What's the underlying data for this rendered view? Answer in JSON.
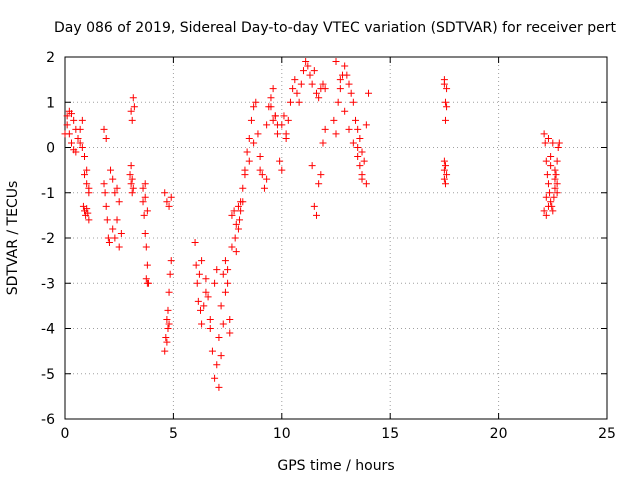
{
  "chart_data": {
    "type": "scatter",
    "title": "Day 086 of 2019, Sidereal Day-to-day VTEC variation (SDTVAR) for receiver pert",
    "xlabel": "GPS time / hours",
    "ylabel": "SDTVAR / TECUs",
    "xlim": [
      0,
      25
    ],
    "ylim": [
      -6,
      2
    ],
    "xticks": [
      0,
      5,
      10,
      15,
      20,
      25
    ],
    "yticks": [
      -6,
      -5,
      -4,
      -3,
      -2,
      -1,
      0,
      1,
      2
    ],
    "grid": true,
    "marker": "plus",
    "color": "#ff0000",
    "series": [
      {
        "name": "SDTVAR",
        "x": [
          0.0,
          0.1,
          0.2,
          0.3,
          0.4,
          0.5,
          0.6,
          0.7,
          0.8,
          0.9,
          1.0,
          1.1,
          0.1,
          0.2,
          0.3,
          0.4,
          0.5,
          0.6,
          0.7,
          0.8,
          0.85,
          0.9,
          0.95,
          1.0,
          1.05,
          1.1,
          0.9,
          1.0,
          1.1,
          1.8,
          1.85,
          1.9,
          1.95,
          2.0,
          2.05,
          1.8,
          1.9,
          2.2,
          2.3,
          2.4,
          2.5,
          2.1,
          2.2,
          2.3,
          2.4,
          2.5,
          2.6,
          3.0,
          3.05,
          3.1,
          3.15,
          3.05,
          3.1,
          3.15,
          3.2,
          3.05,
          3.1,
          3.6,
          3.65,
          3.7,
          3.75,
          3.8,
          3.85,
          3.6,
          3.7,
          3.8,
          3.7,
          3.75,
          3.8,
          4.6,
          4.65,
          4.7,
          4.75,
          4.8,
          4.85,
          4.9,
          4.7,
          4.75,
          4.8,
          4.6,
          4.7,
          4.8,
          4.9,
          6.0,
          6.05,
          6.1,
          6.15,
          6.2,
          6.25,
          6.3,
          6.4,
          6.5,
          6.6,
          6.7,
          6.8,
          6.9,
          7.0,
          7.1,
          7.2,
          7.3,
          7.4,
          7.5,
          7.6,
          7.7,
          6.3,
          6.5,
          6.7,
          6.9,
          7.0,
          7.1,
          7.2,
          7.3,
          7.4,
          7.5,
          7.6,
          7.7,
          7.8,
          7.85,
          7.9,
          8.0,
          8.05,
          8.1,
          8.2,
          8.3,
          7.9,
          8.0,
          8.1,
          8.2,
          8.3,
          8.4,
          8.5,
          8.6,
          8.7,
          8.8,
          8.9,
          9.0,
          9.1,
          9.2,
          9.3,
          9.4,
          9.5,
          9.6,
          9.7,
          9.8,
          9.9,
          10.0,
          8.5,
          8.7,
          9.0,
          9.3,
          9.5,
          9.6,
          9.7,
          9.8,
          10.0,
          10.1,
          10.2,
          10.2,
          10.3,
          10.4,
          10.5,
          10.6,
          10.7,
          10.8,
          10.9,
          11.0,
          11.1,
          11.2,
          11.3,
          11.4,
          11.5,
          11.6,
          11.7,
          11.8,
          11.9,
          12.0,
          11.4,
          11.5,
          11.6,
          11.7,
          11.8,
          11.9,
          12.0,
          12.4,
          12.5,
          12.6,
          12.7,
          12.8,
          12.9,
          13.0,
          13.1,
          13.2,
          13.3,
          13.4,
          13.5,
          13.6,
          13.7,
          13.8,
          13.9,
          14.0,
          12.5,
          12.7,
          12.9,
          13.1,
          13.3,
          13.5,
          13.7,
          13.9,
          13.5,
          13.6,
          13.7,
          17.5,
          17.5,
          17.55,
          17.6,
          17.55,
          17.5,
          17.55,
          17.6,
          17.5,
          17.55,
          17.6,
          17.5,
          22.1,
          22.15,
          22.2,
          22.25,
          22.3,
          22.35,
          22.4,
          22.45,
          22.5,
          22.55,
          22.6,
          22.65,
          22.7,
          22.75,
          22.8,
          22.2,
          22.3,
          22.4,
          22.5,
          22.6,
          22.7,
          22.1,
          22.2,
          22.3,
          22.4,
          22.6,
          22.7
        ],
        "y": [
          0.3,
          0.7,
          0.8,
          0.75,
          0.6,
          0.4,
          0.2,
          0.1,
          0.0,
          -0.2,
          -0.5,
          -0.9,
          0.5,
          0.3,
          0.1,
          -0.05,
          -0.1,
          0.2,
          0.4,
          0.6,
          -1.3,
          -1.4,
          -1.5,
          -1.35,
          -1.45,
          -1.6,
          -0.6,
          -0.8,
          -1.0,
          -0.8,
          -1.0,
          -1.3,
          -1.6,
          -2.0,
          -2.1,
          0.4,
          0.2,
          -1.8,
          -2.0,
          -1.6,
          -1.2,
          -0.5,
          -0.7,
          -1.0,
          -0.9,
          -2.2,
          -1.9,
          -0.6,
          -0.8,
          -1.0,
          -0.9,
          0.8,
          0.6,
          1.1,
          0.9,
          -0.4,
          -0.7,
          -1.2,
          -1.5,
          -1.9,
          -2.2,
          -2.6,
          -3.0,
          -0.9,
          -1.1,
          -1.4,
          -0.8,
          -2.9,
          -3.0,
          -4.5,
          -4.2,
          -3.8,
          -3.6,
          -3.2,
          -2.8,
          -2.5,
          -4.3,
          -4.0,
          -3.9,
          -1.0,
          -1.2,
          -1.3,
          -1.1,
          -2.1,
          -2.6,
          -3.0,
          -3.4,
          -2.8,
          -3.6,
          -3.9,
          -3.5,
          -2.9,
          -3.3,
          -4.0,
          -4.5,
          -5.1,
          -4.8,
          -4.2,
          -3.5,
          -2.8,
          -2.5,
          -3.0,
          -3.8,
          -2.2,
          -2.5,
          -3.2,
          -3.8,
          -3.0,
          -2.7,
          -5.3,
          -4.6,
          -3.9,
          -3.2,
          -2.7,
          -4.1,
          -1.5,
          -1.4,
          -2.0,
          -1.7,
          -1.3,
          -1.6,
          -1.4,
          -0.9,
          -0.5,
          -2.3,
          -1.8,
          -1.2,
          -1.2,
          -0.6,
          -0.1,
          0.2,
          0.6,
          0.9,
          1.0,
          0.3,
          -0.2,
          -0.6,
          -0.9,
          0.5,
          0.9,
          1.1,
          1.3,
          0.7,
          0.3,
          -0.3,
          -0.5,
          -0.3,
          0.1,
          -0.5,
          -0.7,
          0.9,
          0.6,
          0.7,
          0.5,
          0.5,
          0.7,
          0.3,
          0.2,
          0.6,
          1.0,
          1.3,
          1.5,
          1.2,
          1.0,
          1.4,
          1.7,
          1.9,
          1.8,
          1.6,
          1.4,
          1.7,
          1.2,
          1.1,
          1.3,
          1.4,
          1.3,
          -0.4,
          -1.3,
          -1.5,
          -0.8,
          -0.6,
          0.1,
          0.4,
          0.6,
          0.3,
          1.0,
          1.3,
          1.6,
          1.8,
          1.6,
          1.4,
          1.2,
          1.0,
          0.6,
          0.4,
          0.2,
          -0.1,
          -0.3,
          0.5,
          1.2,
          1.9,
          1.5,
          0.8,
          0.4,
          0.1,
          0.0,
          -0.6,
          -0.8,
          -0.2,
          -0.4,
          -0.7,
          1.5,
          1.4,
          1.0,
          0.9,
          0.6,
          -0.3,
          -0.4,
          -0.6,
          -0.7,
          -0.8,
          1.3,
          -0.5,
          0.3,
          0.1,
          -0.3,
          -0.6,
          -0.8,
          -1.0,
          -1.2,
          -1.3,
          -1.4,
          -1.1,
          -0.9,
          -0.6,
          -0.3,
          0.0,
          0.1,
          -1.5,
          -1.3,
          -0.4,
          0.1,
          -0.7,
          -1.0,
          -1.4,
          -1.1,
          0.2,
          -0.2,
          -0.5,
          -0.8
        ]
      }
    ]
  }
}
